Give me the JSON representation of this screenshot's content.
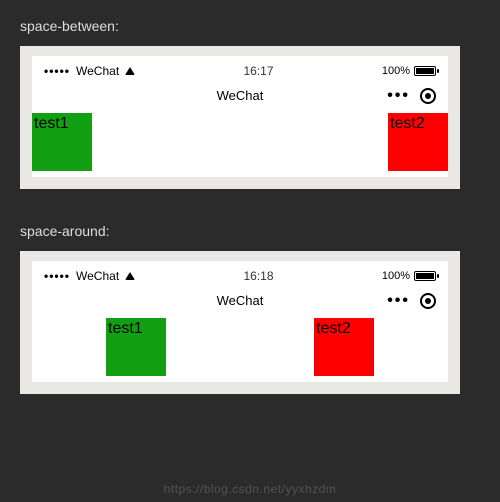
{
  "sections": [
    {
      "label": "space-between:",
      "justify": "between",
      "time": "16:17"
    },
    {
      "label": "space-around:",
      "justify": "around",
      "time": "16:18"
    }
  ],
  "statusBar": {
    "carrier": "WeChat",
    "batteryText": "100%"
  },
  "navBar": {
    "title": "WeChat"
  },
  "boxes": {
    "a": {
      "label": "test1",
      "color": "#12a012"
    },
    "b": {
      "label": "test2",
      "color": "#ff0000"
    }
  },
  "watermark": "https://blog.csdn.net/yyxhzdm"
}
